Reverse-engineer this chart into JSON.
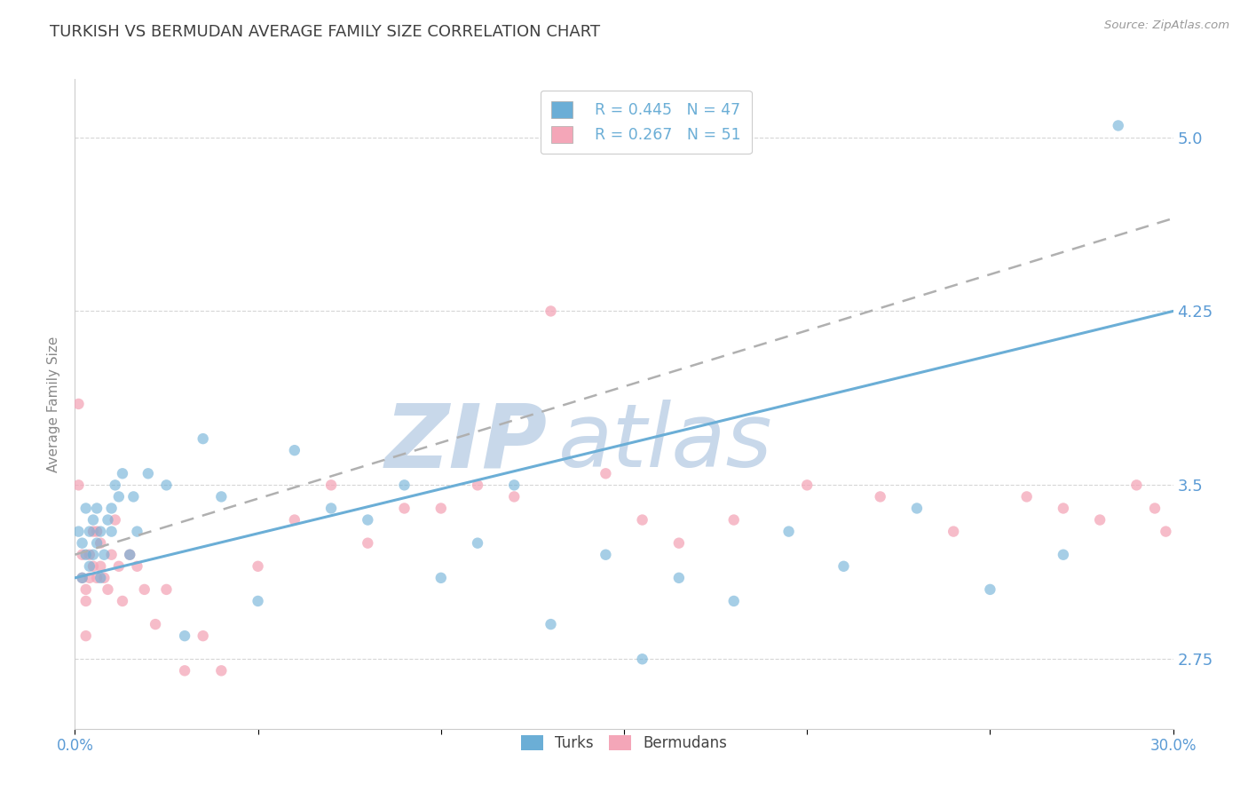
{
  "title": "TURKISH VS BERMUDAN AVERAGE FAMILY SIZE CORRELATION CHART",
  "source_text": "Source: ZipAtlas.com",
  "xlabel": "",
  "ylabel": "Average Family Size",
  "xlim": [
    0.0,
    0.3
  ],
  "ylim": [
    2.45,
    5.25
  ],
  "xticks": [
    0.0,
    0.05,
    0.1,
    0.15,
    0.2,
    0.25,
    0.3
  ],
  "xticklabels": [
    "0.0%",
    "",
    "",
    "",
    "",
    "",
    "30.0%"
  ],
  "yticks": [
    2.75,
    3.5,
    4.25,
    5.0
  ],
  "ytick_color": "#5b9bd5",
  "title_color": "#404040",
  "title_fontsize": 13,
  "axis_label_color": "#888888",
  "background_color": "#ffffff",
  "grid_color": "#cccccc",
  "watermark_text": "ZIPAtlas",
  "watermark_color": "#c8d8ea",
  "legend_R1": "R = 0.445",
  "legend_N1": "N = 47",
  "legend_R2": "R = 0.267",
  "legend_N2": "N = 51",
  "blue_color": "#6baed6",
  "pink_color": "#f4a6b8",
  "turks_label": "Turks",
  "bermudans_label": "Bermudans",
  "turks_x": [
    0.001,
    0.002,
    0.002,
    0.003,
    0.003,
    0.004,
    0.004,
    0.005,
    0.005,
    0.006,
    0.006,
    0.007,
    0.007,
    0.008,
    0.009,
    0.01,
    0.01,
    0.011,
    0.012,
    0.013,
    0.015,
    0.016,
    0.017,
    0.02,
    0.025,
    0.03,
    0.035,
    0.04,
    0.05,
    0.06,
    0.07,
    0.08,
    0.09,
    0.1,
    0.11,
    0.12,
    0.13,
    0.145,
    0.155,
    0.165,
    0.18,
    0.195,
    0.21,
    0.23,
    0.25,
    0.27,
    0.285
  ],
  "turks_y": [
    3.3,
    3.1,
    3.25,
    3.2,
    3.4,
    3.15,
    3.3,
    3.35,
    3.2,
    3.4,
    3.25,
    3.3,
    3.1,
    3.2,
    3.35,
    3.4,
    3.3,
    3.5,
    3.45,
    3.55,
    3.2,
    3.45,
    3.3,
    3.55,
    3.5,
    2.85,
    3.7,
    3.45,
    3.0,
    3.65,
    3.4,
    3.35,
    3.5,
    3.1,
    3.25,
    3.5,
    2.9,
    3.2,
    2.75,
    3.1,
    3.0,
    3.3,
    3.15,
    3.4,
    3.05,
    3.2,
    5.05
  ],
  "bermudans_x": [
    0.001,
    0.001,
    0.002,
    0.002,
    0.003,
    0.003,
    0.003,
    0.004,
    0.004,
    0.005,
    0.005,
    0.006,
    0.006,
    0.007,
    0.007,
    0.008,
    0.009,
    0.01,
    0.011,
    0.012,
    0.013,
    0.015,
    0.017,
    0.019,
    0.022,
    0.025,
    0.03,
    0.035,
    0.04,
    0.05,
    0.06,
    0.07,
    0.08,
    0.09,
    0.1,
    0.11,
    0.12,
    0.13,
    0.145,
    0.155,
    0.165,
    0.18,
    0.2,
    0.22,
    0.24,
    0.26,
    0.27,
    0.28,
    0.29,
    0.295,
    0.298
  ],
  "bermudans_y": [
    3.85,
    3.5,
    3.2,
    3.1,
    3.0,
    2.85,
    3.05,
    3.2,
    3.1,
    3.3,
    3.15,
    3.3,
    3.1,
    3.25,
    3.15,
    3.1,
    3.05,
    3.2,
    3.35,
    3.15,
    3.0,
    3.2,
    3.15,
    3.05,
    2.9,
    3.05,
    2.7,
    2.85,
    2.7,
    3.15,
    3.35,
    3.5,
    3.25,
    3.4,
    3.4,
    3.5,
    3.45,
    4.25,
    3.55,
    3.35,
    3.25,
    3.35,
    3.5,
    3.45,
    3.3,
    3.45,
    3.4,
    3.35,
    3.5,
    3.4,
    3.3
  ],
  "turks_trend_x": [
    0.0,
    0.3
  ],
  "turks_trend_y": [
    3.1,
    4.25
  ],
  "bermudans_trend_x": [
    0.0,
    0.3
  ],
  "bermudans_trend_y": [
    3.2,
    4.65
  ]
}
